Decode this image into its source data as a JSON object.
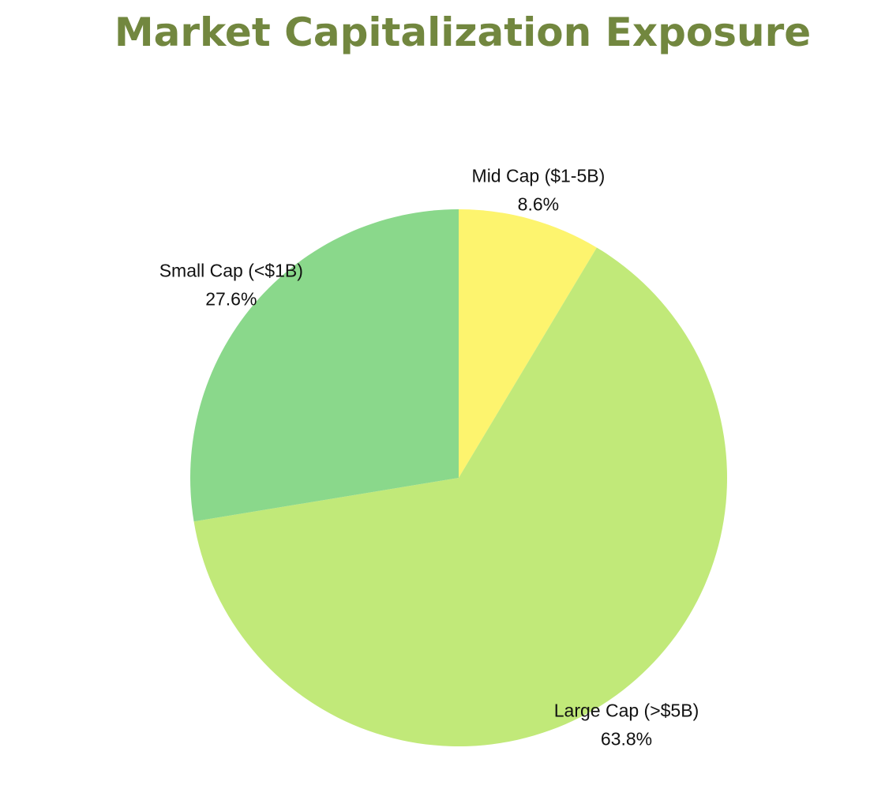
{
  "chart_data": {
    "type": "pie",
    "title": "Market Capitalization Exposure",
    "title_color": "#72873f",
    "start": "12 o'clock",
    "direction": "clockwise",
    "slices": [
      {
        "label": "Mid Cap ($1-5B)",
        "value": 8.6,
        "value_label": "8.6%",
        "color": "#fdf46e"
      },
      {
        "label": "Large Cap (>$5B)",
        "value": 63.8,
        "value_label": "63.8%",
        "color": "#c1e979"
      },
      {
        "label": "Small Cap (<$1B)",
        "value": 27.6,
        "value_label": "27.6%",
        "color": "#8ad88b"
      }
    ]
  }
}
